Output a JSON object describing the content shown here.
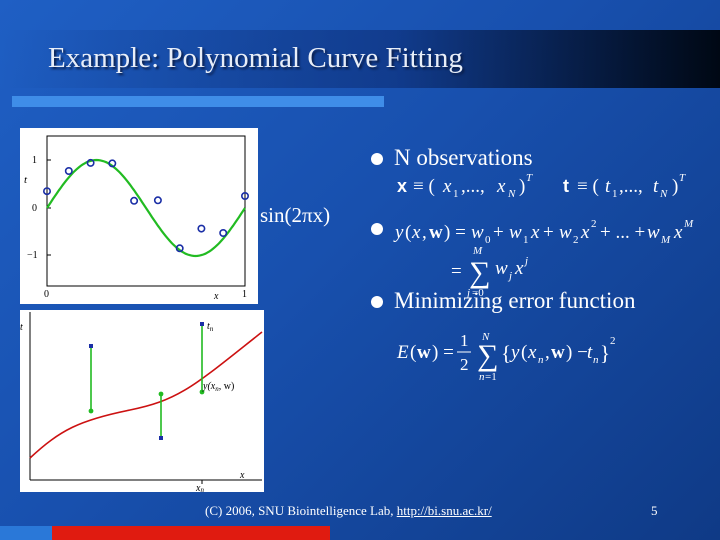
{
  "slide": {
    "title": "Example: Polynomial Curve Fitting",
    "bullets": [
      "N observations",
      "Minimizing error function"
    ],
    "sin_label": "sin(2πx)",
    "footer_text": "(C) 2006, SNU Biointelligence Lab, ",
    "footer_link": "http://bi.snu.ac.kr/",
    "page_number": "5"
  },
  "plot1": {
    "y_ticks": [
      "1",
      "0",
      "−1"
    ],
    "x_ticks": [
      "0",
      "1"
    ],
    "xlabel": "x",
    "ylabel": "t",
    "observations": [
      [
        0.0,
        0.35
      ],
      [
        0.11,
        0.77
      ],
      [
        0.22,
        0.94
      ],
      [
        0.33,
        0.93
      ],
      [
        0.44,
        0.15
      ],
      [
        0.56,
        0.16
      ],
      [
        0.67,
        -0.84
      ],
      [
        0.78,
        -0.43
      ],
      [
        0.89,
        -0.52
      ],
      [
        1.0,
        0.25
      ]
    ],
    "colors": {
      "curve": "#22bb22",
      "points": "#1a2ea6"
    }
  },
  "plot2": {
    "labels": {
      "t_axis": "t",
      "tn": "t",
      "tn_sub": "n",
      "y_label": "y(x",
      "y_label_sub": "n",
      "y_label_rest": ", w)",
      "x_axis": "x",
      "xn": "x",
      "xn_sub": "n"
    },
    "colors": {
      "curve": "#cc1111",
      "residual": "#22bb22",
      "points": "#1a2ea6"
    }
  }
}
